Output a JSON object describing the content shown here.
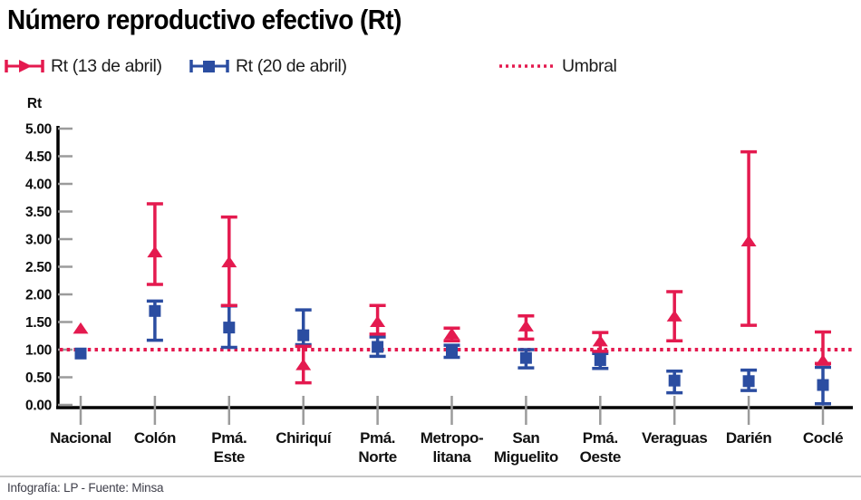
{
  "title": "Número reproductivo efectivo (Rt)",
  "colors": {
    "red": "#e41a4f",
    "blue": "#2b4da1",
    "axis": "#000000",
    "tick": "#9b9b9b"
  },
  "legend": {
    "items": [
      {
        "label": "Rt (13 de abril)",
        "marker": "triangle-errorbar",
        "color": "#e41a4f"
      },
      {
        "label": "Rt (20 de abril)",
        "marker": "square-errorbar",
        "color": "#2b4da1"
      },
      {
        "label": "Umbral",
        "marker": "dotted-line",
        "color": "#e41a4f"
      }
    ]
  },
  "footer": "Infografía: LP - Fuente: Minsa",
  "chart_data": {
    "type": "scatter",
    "subtype": "errorbar",
    "title": "Número reproductivo efectivo (Rt)",
    "ylabel": "Rt",
    "xlabel": "",
    "ylim": [
      0,
      5
    ],
    "grid": false,
    "legend_position": "top",
    "yticks": [
      {
        "v": 5.0,
        "label": "5.00"
      },
      {
        "v": 4.5,
        "label": "4.50"
      },
      {
        "v": 4.0,
        "label": "4.00"
      },
      {
        "v": 3.5,
        "label": "3.50"
      },
      {
        "v": 3.0,
        "label": "3.00"
      },
      {
        "v": 2.5,
        "label": "2.50"
      },
      {
        "v": 2.0,
        "label": "2.00"
      },
      {
        "v": 1.5,
        "label": "1.50"
      },
      {
        "v": 1.0,
        "label": "1.00"
      },
      {
        "v": 0.5,
        "label": "0.50"
      },
      {
        "v": 0.0,
        "label": "0.00"
      }
    ],
    "categories": [
      {
        "name": "Nacional",
        "lines": [
          "Nacional"
        ]
      },
      {
        "name": "Colón",
        "lines": [
          "Colón"
        ]
      },
      {
        "name": "Pmá. Este",
        "lines": [
          "Pmá.",
          "Este"
        ]
      },
      {
        "name": "Chiriquí",
        "lines": [
          "Chiriquí"
        ]
      },
      {
        "name": "Pmá. Norte",
        "lines": [
          "Pmá.",
          "Norte"
        ]
      },
      {
        "name": "Metropolitana",
        "lines": [
          "Metropo-",
          "litana"
        ]
      },
      {
        "name": "San Miguelito",
        "lines": [
          "San",
          "Miguelito"
        ]
      },
      {
        "name": "Pmá. Oeste",
        "lines": [
          "Pmá.",
          "Oeste"
        ]
      },
      {
        "name": "Veraguas",
        "lines": [
          "Veraguas"
        ]
      },
      {
        "name": "Darién",
        "lines": [
          "Darién"
        ]
      },
      {
        "name": "Coclé",
        "lines": [
          "Coclé"
        ]
      }
    ],
    "threshold": {
      "label": "Umbral",
      "value": 1.0,
      "color": "#e41a4f",
      "style": "dotted"
    },
    "series": [
      {
        "name": "Rt (13 de abril)",
        "color": "#e41a4f",
        "marker": "triangle",
        "points": [
          {
            "v": 1.38,
            "lo": null,
            "hi": null
          },
          {
            "v": 2.76,
            "lo": 2.18,
            "hi": 3.64
          },
          {
            "v": 2.58,
            "lo": 1.8,
            "hi": 3.4
          },
          {
            "v": 0.72,
            "lo": 0.4,
            "hi": 1.06
          },
          {
            "v": 1.5,
            "lo": 1.28,
            "hi": 1.8
          },
          {
            "v": 1.28,
            "lo": 1.16,
            "hi": 1.39
          },
          {
            "v": 1.42,
            "lo": 1.19,
            "hi": 1.61
          },
          {
            "v": 1.15,
            "lo": 0.97,
            "hi": 1.31
          },
          {
            "v": 1.6,
            "lo": 1.16,
            "hi": 2.05
          },
          {
            "v": 2.96,
            "lo": 1.44,
            "hi": 4.58
          },
          {
            "v": 0.8,
            "lo": 0.75,
            "hi": 1.32
          }
        ]
      },
      {
        "name": "Rt (20 de abril)",
        "color": "#2b4da1",
        "marker": "square",
        "points": [
          {
            "v": 0.93,
            "lo": null,
            "hi": null
          },
          {
            "v": 1.7,
            "lo": 1.17,
            "hi": 1.88
          },
          {
            "v": 1.4,
            "lo": 1.04,
            "hi": 1.79
          },
          {
            "v": 1.26,
            "lo": 1.09,
            "hi": 1.72
          },
          {
            "v": 1.05,
            "lo": 0.88,
            "hi": 1.23
          },
          {
            "v": 0.97,
            "lo": 0.86,
            "hi": 1.08
          },
          {
            "v": 0.85,
            "lo": 0.67,
            "hi": 1.0
          },
          {
            "v": 0.81,
            "lo": 0.66,
            "hi": 0.93
          },
          {
            "v": 0.44,
            "lo": 0.22,
            "hi": 0.61
          },
          {
            "v": 0.43,
            "lo": 0.26,
            "hi": 0.63
          },
          {
            "v": 0.36,
            "lo": 0.02,
            "hi": 0.68
          }
        ]
      }
    ]
  }
}
